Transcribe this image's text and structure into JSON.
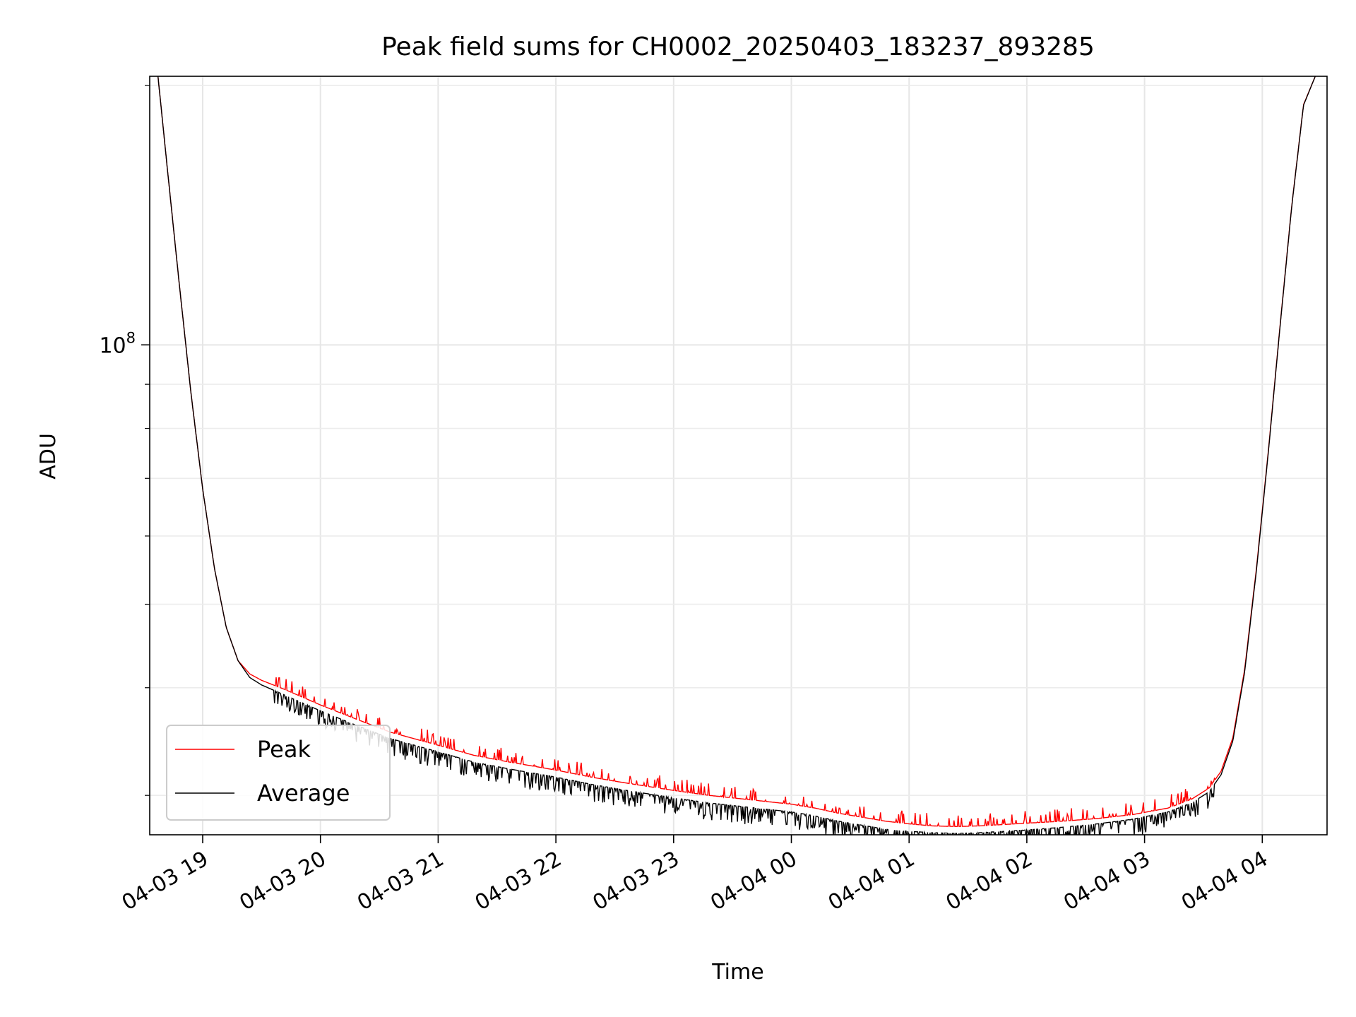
{
  "chart_data": {
    "type": "line",
    "title": "Peak field sums for CH0002_20250403_183237_893285",
    "xlabel": "Time",
    "ylabel": "ADU",
    "x_unit": "hours since 2025-04-03 00:00",
    "xlim": [
      18.55,
      28.55
    ],
    "ylim": [
      27000000,
      205000000
    ],
    "yscale": "log",
    "grid": true,
    "legend_position": "lower-left",
    "x_ticks": [
      {
        "value": 19,
        "label": "04-03 19"
      },
      {
        "value": 20,
        "label": "04-03 20"
      },
      {
        "value": 21,
        "label": "04-03 21"
      },
      {
        "value": 22,
        "label": "04-03 22"
      },
      {
        "value": 23,
        "label": "04-03 23"
      },
      {
        "value": 24,
        "label": "04-04 00"
      },
      {
        "value": 25,
        "label": "04-04 01"
      },
      {
        "value": 26,
        "label": "04-04 02"
      },
      {
        "value": 27,
        "label": "04-04 03"
      },
      {
        "value": 28,
        "label": "04-04 04"
      }
    ],
    "y_major_ticks": [
      {
        "value": 100000000,
        "base": "10",
        "exp": "8"
      }
    ],
    "y_minor_ticks": [
      30000000,
      40000000,
      50000000,
      60000000,
      70000000,
      80000000,
      90000000,
      200000000
    ],
    "series": [
      {
        "name": "Peak",
        "color": "#ff0000",
        "x": [
          18.62,
          18.7,
          18.8,
          18.9,
          19.0,
          19.1,
          19.2,
          19.3,
          19.4,
          19.5,
          19.7,
          20.0,
          20.3,
          20.6,
          21.0,
          21.3,
          21.6,
          22.0,
          22.3,
          22.6,
          23.0,
          23.3,
          23.6,
          24.0,
          24.2,
          24.4,
          24.6,
          24.8,
          25.0,
          25.2,
          25.4,
          25.6,
          25.8,
          26.0,
          26.3,
          26.6,
          26.9,
          27.2,
          27.4,
          27.55,
          27.65,
          27.75,
          27.85,
          27.95,
          28.05,
          28.15,
          28.25,
          28.35,
          28.45
        ],
        "y": [
          205000000,
          160000000,
          118000000,
          88000000,
          68000000,
          55000000,
          47000000,
          43000000,
          41500000,
          40800000,
          39800000,
          38200000,
          36800000,
          35500000,
          34300000,
          33400000,
          32800000,
          32100000,
          31500000,
          31000000,
          30400000,
          30000000,
          29700000,
          29300000,
          29000000,
          28600000,
          28300000,
          28000000,
          27800000,
          27650000,
          27600000,
          27650000,
          27750000,
          27850000,
          28000000,
          28200000,
          28500000,
          29000000,
          29700000,
          30600000,
          32000000,
          35000000,
          42000000,
          55000000,
          75000000,
          105000000,
          145000000,
          190000000,
          205000000
        ]
      },
      {
        "name": "Average",
        "color": "#000000",
        "x": [
          18.62,
          18.7,
          18.8,
          18.9,
          19.0,
          19.1,
          19.2,
          19.3,
          19.4,
          19.5,
          19.7,
          20.0,
          20.3,
          20.6,
          21.0,
          21.3,
          21.6,
          22.0,
          22.3,
          22.6,
          23.0,
          23.3,
          23.6,
          24.0,
          24.2,
          24.4,
          24.6,
          24.8,
          25.0,
          25.2,
          25.4,
          25.6,
          25.8,
          26.0,
          26.3,
          26.6,
          26.9,
          27.2,
          27.4,
          27.55,
          27.65,
          27.75,
          27.85,
          27.95,
          28.05,
          28.15,
          28.25,
          28.35,
          28.45
        ],
        "y": [
          205000000,
          160000000,
          118000000,
          88000000,
          68000000,
          55000000,
          47000000,
          43000000,
          41100000,
          40300000,
          39200000,
          37600000,
          36200000,
          34900000,
          33700000,
          32800000,
          32200000,
          31500000,
          30900000,
          30400000,
          29800000,
          29400000,
          29100000,
          28700000,
          28400000,
          28000000,
          27700000,
          27400000,
          27250000,
          27150000,
          27100000,
          27150000,
          27250000,
          27350000,
          27550000,
          27800000,
          28150000,
          28700000,
          29400000,
          30300000,
          31700000,
          34700000,
          41700000,
          54700000,
          74700000,
          104700000,
          144700000,
          189700000,
          205000000
        ]
      }
    ]
  }
}
